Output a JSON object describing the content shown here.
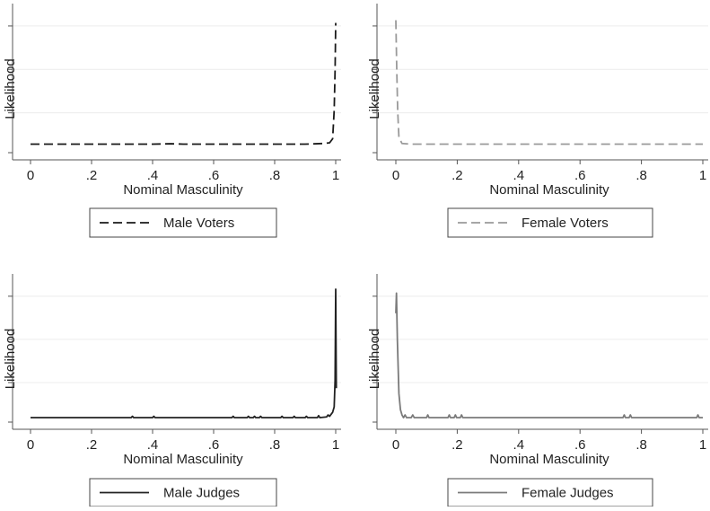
{
  "chart_data": [
    {
      "type": "line",
      "xlabel": "Nominal Masculinity",
      "ylabel": "Likelihood",
      "xlim": [
        0,
        1
      ],
      "ylim": [
        0,
        1
      ],
      "xticks": [
        "0",
        ".2",
        ".4",
        ".6",
        ".8",
        "1"
      ],
      "grid": true,
      "legend_position": "bottom",
      "series": [
        {
          "name": "Male Voters",
          "color": "#1a1a1a",
          "style": "dashed",
          "x": [
            0,
            0.1,
            0.2,
            0.3,
            0.4,
            0.46,
            0.5,
            0.6,
            0.7,
            0.8,
            0.9,
            0.96,
            0.98,
            0.99,
            0.995,
            0.998,
            1.0
          ],
          "y": [
            0.05,
            0.05,
            0.05,
            0.05,
            0.05,
            0.053,
            0.05,
            0.05,
            0.05,
            0.05,
            0.05,
            0.055,
            0.06,
            0.09,
            0.3,
            0.6,
            0.95
          ]
        }
      ]
    },
    {
      "type": "line",
      "xlabel": "Nominal Masculinity",
      "ylabel": "Likelihood",
      "xlim": [
        0,
        1
      ],
      "ylim": [
        0,
        1
      ],
      "xticks": [
        "0",
        ".2",
        ".4",
        ".6",
        ".8",
        "1"
      ],
      "grid": true,
      "legend_position": "bottom",
      "series": [
        {
          "name": "Female Voters",
          "color": "#9a9a9a",
          "style": "dashed",
          "x": [
            0,
            0.003,
            0.006,
            0.01,
            0.02,
            0.05,
            0.1,
            0.2,
            0.4,
            0.6,
            0.8,
            1.0
          ],
          "y": [
            0.97,
            0.6,
            0.3,
            0.1,
            0.055,
            0.05,
            0.05,
            0.05,
            0.05,
            0.05,
            0.05,
            0.05
          ]
        }
      ]
    },
    {
      "type": "line",
      "xlabel": "Nominal Masculinity",
      "ylabel": "Likelihood",
      "xlim": [
        0,
        1
      ],
      "ylim": [
        0,
        1
      ],
      "xticks": [
        "0",
        ".2",
        ".4",
        ".6",
        ".8",
        "1"
      ],
      "grid": true,
      "legend_position": "bottom",
      "series": [
        {
          "name": "Male Judges",
          "color": "#222222",
          "style": "solid",
          "x": [
            0,
            0.33,
            0.334,
            0.338,
            0.4,
            0.404,
            0.408,
            0.66,
            0.664,
            0.668,
            0.71,
            0.714,
            0.718,
            0.73,
            0.734,
            0.738,
            0.75,
            0.754,
            0.758,
            0.82,
            0.824,
            0.828,
            0.86,
            0.864,
            0.868,
            0.9,
            0.904,
            0.908,
            0.94,
            0.944,
            0.948,
            0.97,
            0.975,
            0.98,
            0.99,
            0.995,
            0.998,
            1.0,
            1.002
          ],
          "y": [
            0.02,
            0.02,
            0.03,
            0.02,
            0.02,
            0.03,
            0.02,
            0.02,
            0.03,
            0.02,
            0.02,
            0.03,
            0.02,
            0.02,
            0.03,
            0.02,
            0.02,
            0.03,
            0.02,
            0.02,
            0.03,
            0.02,
            0.02,
            0.03,
            0.02,
            0.02,
            0.03,
            0.02,
            0.02,
            0.035,
            0.02,
            0.025,
            0.04,
            0.03,
            0.06,
            0.1,
            0.3,
            0.98,
            0.24
          ]
        }
      ]
    },
    {
      "type": "line",
      "xlabel": "Nominal Masculinity",
      "ylabel": "Likelihood",
      "xlim": [
        0,
        1
      ],
      "ylim": [
        0,
        1
      ],
      "xticks": [
        "0",
        ".2",
        ".4",
        ".6",
        ".8",
        "1"
      ],
      "grid": true,
      "legend_position": "bottom",
      "series": [
        {
          "name": "Female Judges",
          "color": "#7a7a7a",
          "style": "solid",
          "x": [
            0,
            0.002,
            0.005,
            0.01,
            0.015,
            0.02,
            0.025,
            0.03,
            0.035,
            0.05,
            0.055,
            0.06,
            0.1,
            0.104,
            0.108,
            0.17,
            0.174,
            0.178,
            0.19,
            0.194,
            0.198,
            0.21,
            0.214,
            0.218,
            0.74,
            0.744,
            0.748,
            0.76,
            0.764,
            0.768,
            0.98,
            0.984,
            0.988,
            1.0
          ],
          "y": [
            0.8,
            0.95,
            0.6,
            0.2,
            0.08,
            0.04,
            0.02,
            0.04,
            0.02,
            0.02,
            0.04,
            0.02,
            0.02,
            0.04,
            0.02,
            0.02,
            0.04,
            0.02,
            0.02,
            0.04,
            0.02,
            0.02,
            0.04,
            0.02,
            0.02,
            0.04,
            0.02,
            0.02,
            0.04,
            0.02,
            0.02,
            0.04,
            0.02,
            0.02
          ]
        }
      ]
    }
  ]
}
